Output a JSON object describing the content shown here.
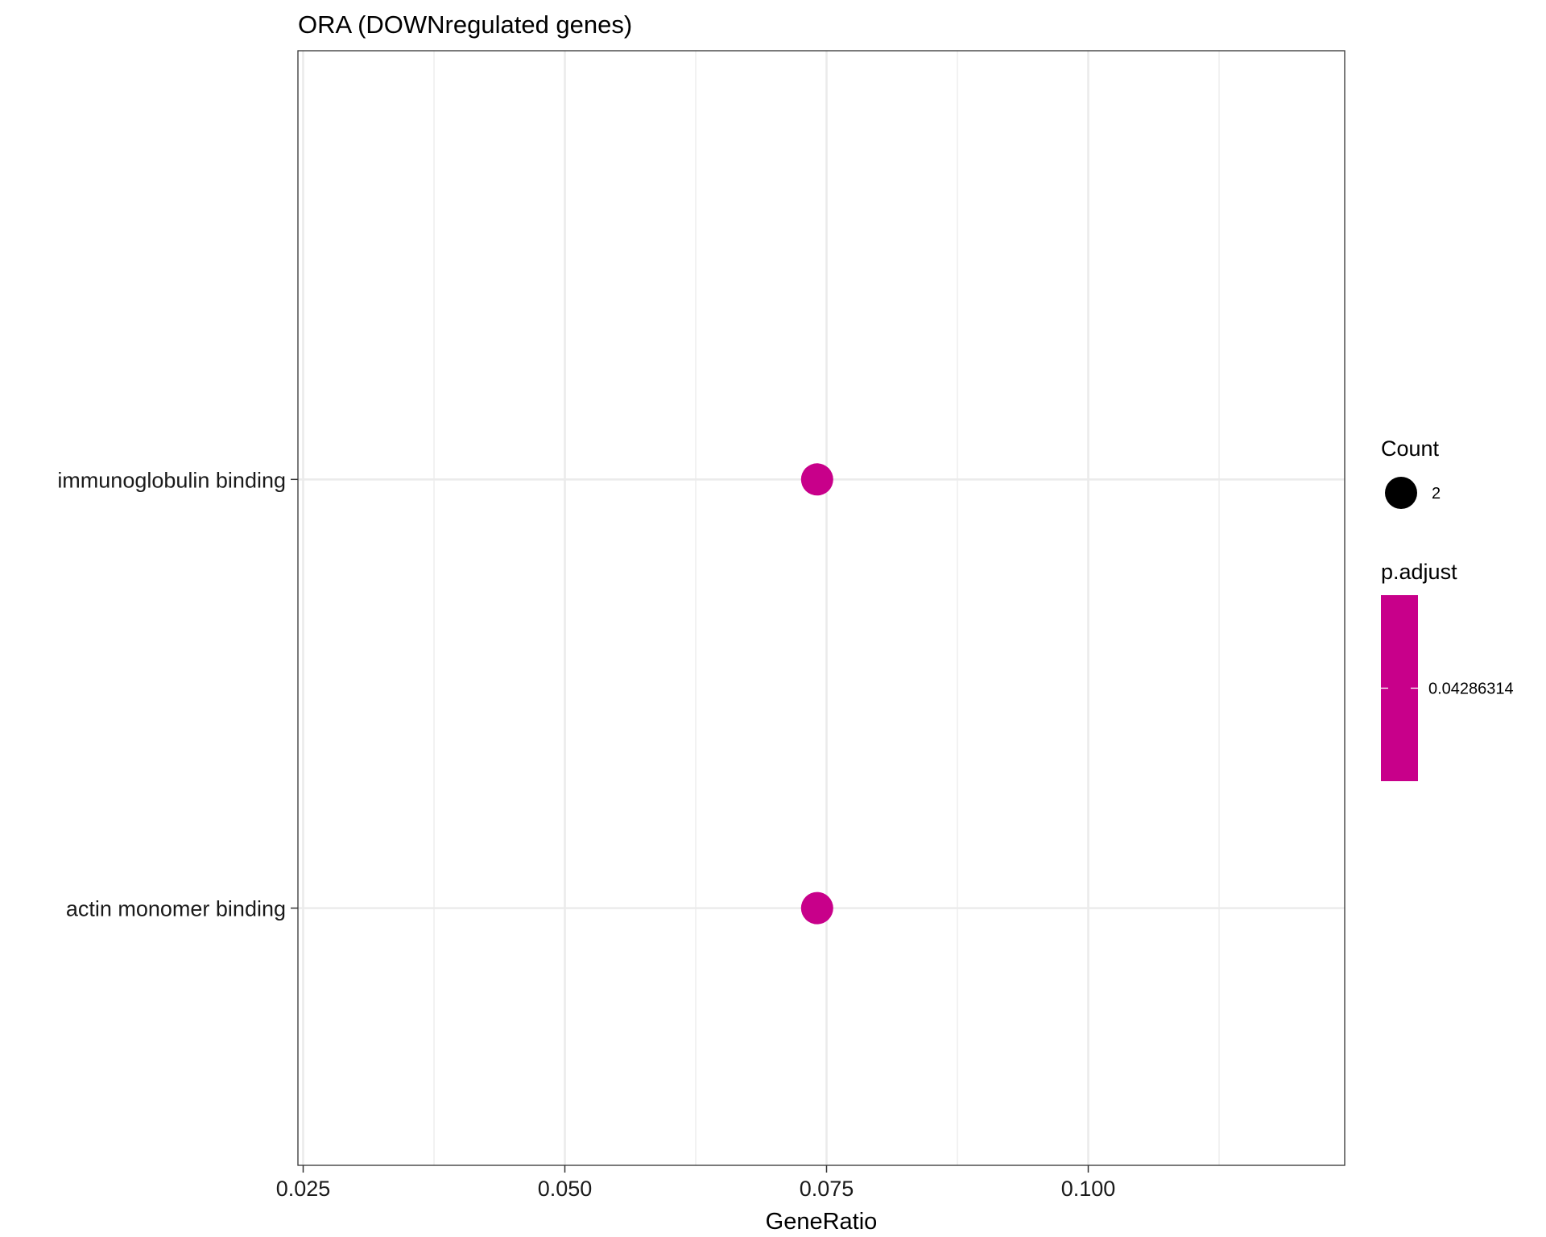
{
  "chart_data": {
    "type": "scatter",
    "title": "ORA (DOWNregulated genes)",
    "xlabel": "GeneRatio",
    "ylabel": "",
    "xlim": [
      0.0245,
      0.1245
    ],
    "x_ticks": [
      0.025,
      0.05,
      0.075,
      0.1
    ],
    "x_tick_labels": [
      "0.025",
      "0.050",
      "0.075",
      "0.100"
    ],
    "x_minor_ticks": [
      0.0375,
      0.0625,
      0.0875,
      0.1125
    ],
    "categories": [
      "immunoglobulin binding",
      "actin monomer binding"
    ],
    "points": [
      {
        "category": "immunoglobulin binding",
        "x": 0.0741,
        "count": 2,
        "p_adjust": 0.04286314
      },
      {
        "category": "actin monomer binding",
        "x": 0.0741,
        "count": 2,
        "p_adjust": 0.04286314
      }
    ],
    "point_color": "#C8008A",
    "grid": true,
    "legend": {
      "position": "right",
      "size": {
        "title": "Count",
        "entries": [
          {
            "value": 2,
            "label": "2"
          }
        ]
      },
      "color": {
        "title": "p.adjust",
        "entries": [
          {
            "value": 0.04286314,
            "label": "0.04286314"
          }
        ],
        "color": "#C8008A"
      }
    }
  }
}
